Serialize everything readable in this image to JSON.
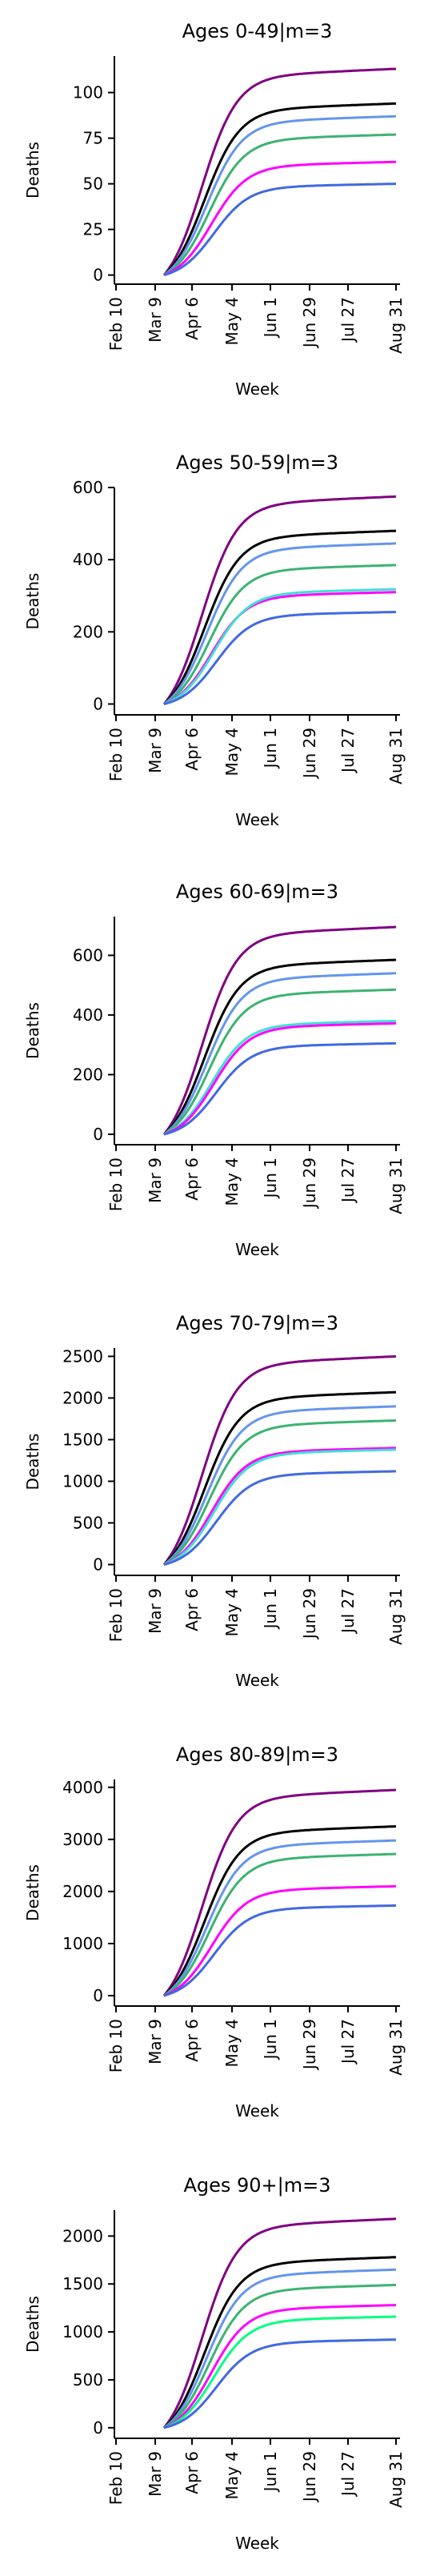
{
  "chart_data": [
    {
      "type": "line",
      "title": "Ages 0-49|m=3",
      "xlabel": "Week",
      "ylabel": "Deaths",
      "xticks": [
        "Feb 10",
        "Mar 9",
        "Apr 6",
        "May 4",
        "Jun 1",
        "Jun 29",
        "Jul 27",
        "Aug 31"
      ],
      "ylim": [
        -5,
        120
      ],
      "yticks": [
        0,
        25,
        50,
        75,
        100
      ],
      "series": [
        {
          "color": "#800080",
          "final": 113
        },
        {
          "color": "#000000",
          "final": 94
        },
        {
          "color": "#6495ed",
          "final": 87
        },
        {
          "color": "#3cb371",
          "final": 77
        },
        {
          "color": "#ff00ff",
          "final": 62
        },
        {
          "color": "#4169e1",
          "final": 50
        }
      ]
    },
    {
      "type": "line",
      "title": "Ages 50-59|m=3",
      "xlabel": "Week",
      "ylabel": "Deaths",
      "xticks": [
        "Feb 10",
        "Mar 9",
        "Apr 6",
        "May 4",
        "Jun 1",
        "Jun 29",
        "Jul 27",
        "Aug 31"
      ],
      "ylim": [
        -30,
        600
      ],
      "yticks": [
        0,
        200,
        400,
        600
      ],
      "series": [
        {
          "color": "#800080",
          "final": 575
        },
        {
          "color": "#000000",
          "final": 480
        },
        {
          "color": "#6495ed",
          "final": 445
        },
        {
          "color": "#3cb371",
          "final": 385
        },
        {
          "color": "#ff00ff",
          "final": 310
        },
        {
          "color": "#40e0d0",
          "final": 318
        },
        {
          "color": "#4169e1",
          "final": 255
        }
      ]
    },
    {
      "type": "line",
      "title": "Ages 60-69|m=3",
      "xlabel": "Week",
      "ylabel": "Deaths",
      "xticks": [
        "Feb 10",
        "Mar 9",
        "Apr 6",
        "May 4",
        "Jun 1",
        "Jun 29",
        "Jul 27",
        "Aug 31"
      ],
      "ylim": [
        -35,
        730
      ],
      "yticks": [
        0,
        200,
        400,
        600
      ],
      "series": [
        {
          "color": "#800080",
          "final": 695
        },
        {
          "color": "#000000",
          "final": 585
        },
        {
          "color": "#6495ed",
          "final": 540
        },
        {
          "color": "#3cb371",
          "final": 485
        },
        {
          "color": "#40e0d0",
          "final": 380
        },
        {
          "color": "#ff00ff",
          "final": 372
        },
        {
          "color": "#4169e1",
          "final": 305
        }
      ]
    },
    {
      "type": "line",
      "title": "Ages 70-79|m=3",
      "xlabel": "Week",
      "ylabel": "Deaths",
      "xticks": [
        "Feb 10",
        "Mar 9",
        "Apr 6",
        "May 4",
        "Jun 1",
        "Jun 29",
        "Jul 27",
        "Aug 31"
      ],
      "ylim": [
        -130,
        2600
      ],
      "yticks": [
        0,
        500,
        1000,
        1500,
        2000,
        2500
      ],
      "series": [
        {
          "color": "#800080",
          "final": 2500
        },
        {
          "color": "#000000",
          "final": 2070
        },
        {
          "color": "#6495ed",
          "final": 1900
        },
        {
          "color": "#3cb371",
          "final": 1730
        },
        {
          "color": "#ff00ff",
          "final": 1400
        },
        {
          "color": "#40e0d0",
          "final": 1380
        },
        {
          "color": "#4169e1",
          "final": 1120
        }
      ]
    },
    {
      "type": "line",
      "title": "Ages 80-89|m=3",
      "xlabel": "Week",
      "ylabel": "Deaths",
      "xticks": [
        "Feb 10",
        "Mar 9",
        "Apr 6",
        "May 4",
        "Jun 1",
        "Jun 29",
        "Jul 27",
        "Aug 31"
      ],
      "ylim": [
        -200,
        4150
      ],
      "yticks": [
        0,
        1000,
        2000,
        3000,
        4000
      ],
      "series": [
        {
          "color": "#800080",
          "final": 3950
        },
        {
          "color": "#000000",
          "final": 3250
        },
        {
          "color": "#6495ed",
          "final": 2980
        },
        {
          "color": "#3cb371",
          "final": 2720
        },
        {
          "color": "#ff00ff",
          "final": 2100
        },
        {
          "color": "#4169e1",
          "final": 1730
        }
      ]
    },
    {
      "type": "line",
      "title": "Ages 90+|m=3",
      "xlabel": "Week",
      "ylabel": "Deaths",
      "xticks": [
        "Feb 10",
        "Mar 9",
        "Apr 6",
        "May 4",
        "Jun 1",
        "Jun 29",
        "Jul 27",
        "Aug 31"
      ],
      "ylim": [
        -110,
        2270
      ],
      "yticks": [
        0,
        500,
        1000,
        1500,
        2000
      ],
      "series": [
        {
          "color": "#800080",
          "final": 2180
        },
        {
          "color": "#000000",
          "final": 1780
        },
        {
          "color": "#6495ed",
          "final": 1650
        },
        {
          "color": "#3cb371",
          "final": 1490
        },
        {
          "color": "#ff00ff",
          "final": 1280
        },
        {
          "color": "#00ff7f",
          "final": 1160
        },
        {
          "color": "#4169e1",
          "final": 920
        }
      ]
    }
  ]
}
